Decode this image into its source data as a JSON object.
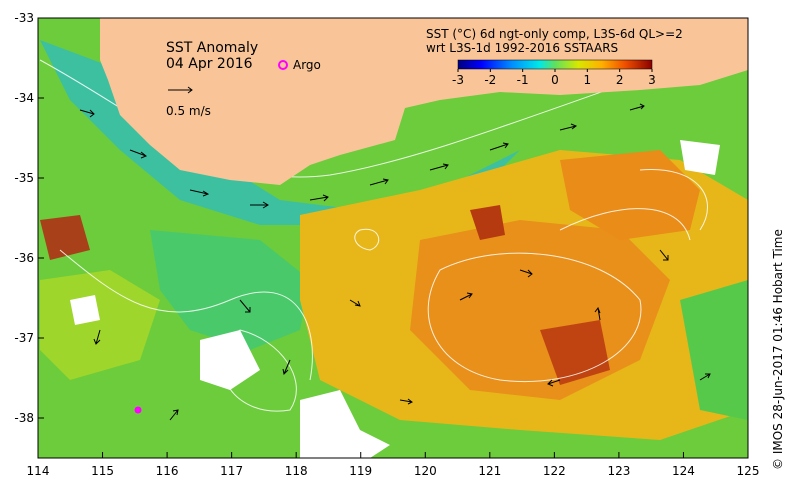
{
  "title": "SST Anomaly",
  "date": "04 Apr 2016",
  "legend": {
    "argo_label": "Argo",
    "vector_label": "0.5 m/s",
    "product_line1": "SST (°C) 6d ngt-only comp, L3S-6d QL>=2",
    "product_line2": "wrt L3S-1d 1992-2016 SSTAARS"
  },
  "colorbar": {
    "min": -3,
    "max": 3,
    "ticks": [
      "-3",
      "-2",
      "-1",
      "0",
      "1",
      "2",
      "3"
    ],
    "colors": [
      "#00007f",
      "#0000ff",
      "#0080ff",
      "#00ffff",
      "#80ff80",
      "#ffff00",
      "#ff8000",
      "#ff0000",
      "#7f0000"
    ]
  },
  "axes": {
    "lon_range": [
      114,
      125
    ],
    "lat_range": [
      -38.5,
      -33
    ],
    "x_ticks": [
      "114",
      "115",
      "116",
      "117",
      "118",
      "119",
      "120",
      "121",
      "122",
      "123",
      "124",
      "125"
    ],
    "y_ticks": [
      "-33",
      "-34",
      "-35",
      "-36",
      "-37",
      "-38"
    ]
  },
  "credit": "© IMOS 28-Jun-2017 01:46 Hobart Time",
  "colors": {
    "land": "#f9c598",
    "background": "#ffffff",
    "argo": "#ff00ff"
  }
}
